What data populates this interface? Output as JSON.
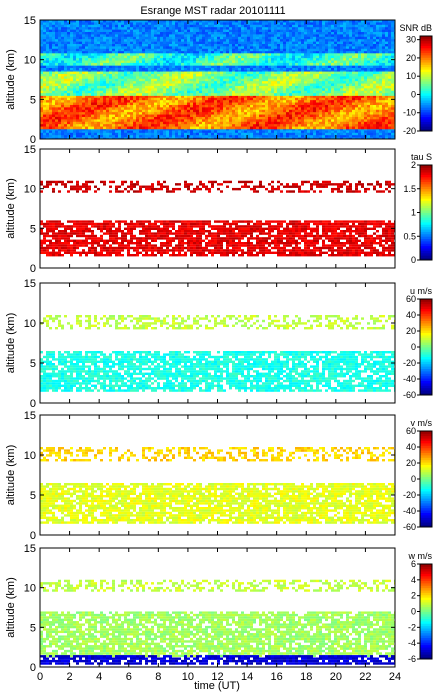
{
  "title": "Esrange MST radar 20101111",
  "xlabel": "time (UT)",
  "chart_data": [
    {
      "type": "heatmap",
      "quantity": "SNR",
      "colorbar_label": "SNR dB",
      "colorbar_ticks": [
        30,
        20,
        10,
        0,
        -10,
        -20
      ],
      "clim": [
        -20,
        32
      ],
      "ylabel": "altitude (km)",
      "ylim": [
        0,
        15
      ],
      "yticks": [
        0,
        5,
        10,
        15
      ],
      "xlim": [
        0,
        24
      ],
      "coverage": "full",
      "layers": [
        {
          "name": "low layer",
          "alt_km": [
            1.5,
            5.5
          ],
          "value": 20
        },
        {
          "name": "mid layer",
          "alt_km": [
            5.5,
            8.5
          ],
          "value": 6
        },
        {
          "name": "upper layer",
          "alt_km": [
            9.5,
            10.8
          ],
          "value": 2
        },
        {
          "name": "background",
          "alt_km": [
            0.5,
            15
          ],
          "value": -7
        }
      ]
    },
    {
      "type": "heatmap",
      "quantity": "tau",
      "colorbar_label": "tau S",
      "colorbar_ticks": [
        2,
        1.5,
        1,
        0.5,
        0
      ],
      "clim": [
        0,
        2
      ],
      "ylabel": "altitude (km)",
      "ylim": [
        0,
        15
      ],
      "yticks": [
        0,
        5,
        10,
        15
      ],
      "xlim": [
        0,
        24
      ],
      "coverage": "sparse",
      "layers": [
        {
          "name": "low echoes",
          "alt_km": [
            1.5,
            6
          ],
          "value": 1.8
        },
        {
          "name": "upper echoes",
          "alt_km": [
            9.5,
            11
          ],
          "value": 1.85
        }
      ]
    },
    {
      "type": "heatmap",
      "quantity": "u",
      "colorbar_label": "u m/s",
      "colorbar_ticks": [
        60,
        40,
        20,
        0,
        -20,
        -40,
        -60
      ],
      "clim": [
        -60,
        60
      ],
      "ylabel": "altitude (km)",
      "ylim": [
        0,
        15
      ],
      "yticks": [
        0,
        5,
        10,
        15
      ],
      "xlim": [
        0,
        24
      ],
      "coverage": "sparse",
      "layers": [
        {
          "name": "low echoes",
          "alt_km": [
            1.5,
            6.5
          ],
          "value": -12
        },
        {
          "name": "upper echoes",
          "alt_km": [
            9.5,
            11
          ],
          "value": 8
        }
      ]
    },
    {
      "type": "heatmap",
      "quantity": "v",
      "colorbar_label": "v m/s",
      "colorbar_ticks": [
        60,
        40,
        20,
        0,
        -20,
        -40,
        -60
      ],
      "clim": [
        -60,
        60
      ],
      "ylabel": "altitude (km)",
      "ylim": [
        0,
        15
      ],
      "yticks": [
        0,
        5,
        10,
        15
      ],
      "xlim": [
        0,
        24
      ],
      "coverage": "sparse",
      "layers": [
        {
          "name": "low echoes",
          "alt_km": [
            1.5,
            6.5
          ],
          "value": 12
        },
        {
          "name": "upper echoes",
          "alt_km": [
            9.5,
            11
          ],
          "value": 20
        }
      ]
    },
    {
      "type": "heatmap",
      "quantity": "w",
      "colorbar_label": "w m/s",
      "colorbar_ticks": [
        6,
        4,
        2,
        0,
        -2,
        -4,
        -6
      ],
      "clim": [
        -6,
        6
      ],
      "ylabel": "altitude (km)",
      "ylim": [
        0,
        15
      ],
      "yticks": [
        0,
        5,
        10,
        15
      ],
      "xlim": [
        0,
        24
      ],
      "coverage": "sparse",
      "layers": [
        {
          "name": "low echoes",
          "alt_km": [
            1.5,
            7
          ],
          "value": 0.4
        },
        {
          "name": "upper echoes",
          "alt_km": [
            9.5,
            11
          ],
          "value": 0.8
        },
        {
          "name": "near-ground noise",
          "alt_km": [
            0.5,
            1.5
          ],
          "value": -5
        }
      ]
    }
  ],
  "xticks": [
    0,
    2,
    4,
    6,
    8,
    10,
    12,
    14,
    16,
    18,
    20,
    22,
    24
  ]
}
